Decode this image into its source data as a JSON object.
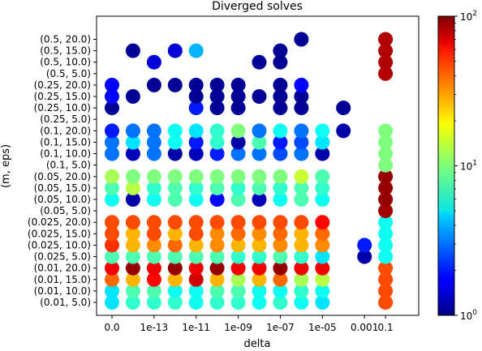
{
  "chart_data": {
    "type": "scatter",
    "title": "Diverged solves",
    "xlabel": "delta",
    "ylabel": "(m, eps)",
    "x_ticks": [
      "0.0",
      "1e-13",
      "1e-11",
      "1e-09",
      "1e-07",
      "1e-05",
      "0.001",
      "0.1"
    ],
    "y_ticks": [
      "(0.01, 5.0)",
      "(0.01, 10.0)",
      "(0.01, 15.0)",
      "(0.01, 20.0)",
      "(0.025, 5.0)",
      "(0.025, 10.0)",
      "(0.025, 15.0)",
      "(0.025, 20.0)",
      "(0.05, 5.0)",
      "(0.05, 10.0)",
      "(0.05, 15.0)",
      "(0.05, 20.0)",
      "(0.1, 5.0)",
      "(0.1, 10.0)",
      "(0.1, 15.0)",
      "(0.1, 20.0)",
      "(0.25, 5.0)",
      "(0.25, 10.0)",
      "(0.25, 15.0)",
      "(0.25, 20.0)",
      "(0.5, 5.0)",
      "(0.5, 10.0)",
      "(0.5, 15.0)",
      "(0.5, 20.0)"
    ],
    "x_values": [
      0.0,
      1e-14,
      1e-13,
      1e-12,
      1e-11,
      1e-10,
      1e-09,
      1e-08,
      1e-07,
      1e-06,
      1e-05,
      0.0001,
      0.001,
      0.1
    ],
    "colorbar": {
      "scale": "log",
      "min": 1,
      "max": 100,
      "colormap": "jet",
      "tick_labels": [
        "10^0",
        "10^1",
        "10^2"
      ]
    },
    "points": [
      [
        0,
        0,
        5
      ],
      [
        1,
        0,
        7
      ],
      [
        2,
        0,
        7
      ],
      [
        3,
        0,
        7
      ],
      [
        4,
        0,
        6
      ],
      [
        5,
        0,
        7
      ],
      [
        6,
        0,
        7
      ],
      [
        7,
        0,
        6
      ],
      [
        8,
        0,
        7
      ],
      [
        9,
        0,
        6
      ],
      [
        10,
        0,
        5
      ],
      [
        13,
        0,
        40
      ],
      [
        0,
        1,
        5
      ],
      [
        1,
        1,
        8
      ],
      [
        2,
        1,
        8
      ],
      [
        3,
        1,
        6
      ],
      [
        4,
        1,
        6
      ],
      [
        5,
        1,
        8
      ],
      [
        6,
        1,
        8
      ],
      [
        7,
        1,
        6
      ],
      [
        8,
        1,
        6
      ],
      [
        9,
        1,
        7
      ],
      [
        10,
        1,
        6
      ],
      [
        13,
        1,
        40
      ],
      [
        0,
        2,
        35
      ],
      [
        1,
        2,
        25
      ],
      [
        2,
        2,
        55
      ],
      [
        3,
        2,
        25
      ],
      [
        4,
        2,
        70
      ],
      [
        5,
        2,
        25
      ],
      [
        6,
        2,
        12
      ],
      [
        7,
        2,
        25
      ],
      [
        8,
        2,
        35
      ],
      [
        9,
        2,
        12
      ],
      [
        10,
        2,
        13
      ],
      [
        13,
        2,
        40
      ],
      [
        0,
        3,
        60
      ],
      [
        1,
        3,
        90
      ],
      [
        2,
        3,
        60
      ],
      [
        3,
        3,
        90
      ],
      [
        4,
        3,
        60
      ],
      [
        5,
        3,
        90
      ],
      [
        6,
        3,
        60
      ],
      [
        7,
        3,
        60
      ],
      [
        8,
        3,
        90
      ],
      [
        9,
        3,
        60
      ],
      [
        10,
        3,
        60
      ],
      [
        13,
        3,
        40
      ],
      [
        0,
        4,
        8
      ],
      [
        1,
        4,
        8
      ],
      [
        2,
        4,
        8
      ],
      [
        3,
        4,
        8
      ],
      [
        4,
        4,
        8
      ],
      [
        5,
        4,
        8
      ],
      [
        6,
        4,
        7
      ],
      [
        7,
        4,
        7
      ],
      [
        8,
        4,
        8
      ],
      [
        9,
        4,
        7
      ],
      [
        10,
        4,
        5
      ],
      [
        12,
        4,
        1.2
      ],
      [
        13,
        4,
        6
      ],
      [
        0,
        5,
        45
      ],
      [
        1,
        5,
        25
      ],
      [
        2,
        5,
        30
      ],
      [
        3,
        5,
        35
      ],
      [
        4,
        5,
        25
      ],
      [
        5,
        5,
        30
      ],
      [
        6,
        5,
        25
      ],
      [
        7,
        5,
        25
      ],
      [
        8,
        5,
        30
      ],
      [
        9,
        5,
        25
      ],
      [
        10,
        5,
        30
      ],
      [
        12,
        5,
        2
      ],
      [
        13,
        5,
        6
      ],
      [
        0,
        6,
        40
      ],
      [
        1,
        6,
        25
      ],
      [
        2,
        6,
        40
      ],
      [
        3,
        6,
        25
      ],
      [
        4,
        6,
        40
      ],
      [
        5,
        6,
        30
      ],
      [
        6,
        6,
        35
      ],
      [
        7,
        6,
        30
      ],
      [
        8,
        6,
        35
      ],
      [
        9,
        6,
        25
      ],
      [
        10,
        6,
        35
      ],
      [
        13,
        6,
        6
      ],
      [
        0,
        7,
        40
      ],
      [
        1,
        7,
        40
      ],
      [
        2,
        7,
        40
      ],
      [
        3,
        7,
        40
      ],
      [
        4,
        7,
        40
      ],
      [
        5,
        7,
        40
      ],
      [
        6,
        7,
        40
      ],
      [
        7,
        7,
        40
      ],
      [
        8,
        7,
        40
      ],
      [
        9,
        7,
        40
      ],
      [
        10,
        7,
        55
      ],
      [
        13,
        7,
        6
      ],
      [
        13,
        8,
        85
      ],
      [
        0,
        9,
        6
      ],
      [
        1,
        9,
        1.2
      ],
      [
        2,
        9,
        6
      ],
      [
        3,
        9,
        8
      ],
      [
        4,
        9,
        6
      ],
      [
        5,
        9,
        1.8
      ],
      [
        6,
        9,
        8
      ],
      [
        7,
        9,
        1.3
      ],
      [
        8,
        9,
        6
      ],
      [
        9,
        9,
        8
      ],
      [
        10,
        9,
        6
      ],
      [
        13,
        9,
        90
      ],
      [
        0,
        10,
        8
      ],
      [
        1,
        10,
        13
      ],
      [
        2,
        10,
        7
      ],
      [
        3,
        10,
        8
      ],
      [
        4,
        10,
        7
      ],
      [
        5,
        10,
        8
      ],
      [
        6,
        10,
        7
      ],
      [
        7,
        10,
        8
      ],
      [
        8,
        10,
        7
      ],
      [
        9,
        10,
        8
      ],
      [
        10,
        10,
        7
      ],
      [
        13,
        10,
        90
      ],
      [
        0,
        11,
        12
      ],
      [
        1,
        11,
        10
      ],
      [
        2,
        11,
        10
      ],
      [
        3,
        11,
        10
      ],
      [
        4,
        11,
        10
      ],
      [
        5,
        11,
        10
      ],
      [
        6,
        11,
        10
      ],
      [
        7,
        11,
        10
      ],
      [
        8,
        11,
        10
      ],
      [
        9,
        11,
        14
      ],
      [
        10,
        11,
        8
      ],
      [
        13,
        11,
        90
      ],
      [
        13,
        12,
        10
      ],
      [
        0,
        13,
        3
      ],
      [
        1,
        13,
        1.3
      ],
      [
        2,
        13,
        3
      ],
      [
        3,
        13,
        1.2
      ],
      [
        4,
        13,
        1.3
      ],
      [
        5,
        13,
        2
      ],
      [
        6,
        13,
        3
      ],
      [
        7,
        13,
        3
      ],
      [
        8,
        13,
        2.5
      ],
      [
        9,
        13,
        3
      ],
      [
        10,
        13,
        1.2
      ],
      [
        13,
        13,
        10
      ],
      [
        0,
        14,
        3
      ],
      [
        1,
        14,
        5
      ],
      [
        2,
        14,
        3
      ],
      [
        3,
        14,
        6
      ],
      [
        4,
        14,
        2
      ],
      [
        5,
        14,
        7
      ],
      [
        6,
        14,
        1.2
      ],
      [
        7,
        14,
        8
      ],
      [
        8,
        14,
        2
      ],
      [
        9,
        14,
        2.5
      ],
      [
        10,
        14,
        5
      ],
      [
        13,
        14,
        10
      ],
      [
        0,
        15,
        2
      ],
      [
        1,
        15,
        3
      ],
      [
        2,
        15,
        3
      ],
      [
        3,
        15,
        6
      ],
      [
        4,
        15,
        5
      ],
      [
        5,
        15,
        7
      ],
      [
        6,
        15,
        10
      ],
      [
        7,
        15,
        3
      ],
      [
        8,
        15,
        6
      ],
      [
        9,
        15,
        3
      ],
      [
        10,
        15,
        6
      ],
      [
        11,
        15,
        1.2
      ],
      [
        13,
        15,
        10
      ],
      [
        0,
        17,
        1.1
      ],
      [
        4,
        17,
        2
      ],
      [
        5,
        17,
        1.1
      ],
      [
        6,
        17,
        1.1
      ],
      [
        8,
        17,
        1.1
      ],
      [
        9,
        17,
        1.1
      ],
      [
        11,
        17,
        1.1
      ],
      [
        0,
        18,
        1.8
      ],
      [
        1,
        18,
        1.1
      ],
      [
        4,
        18,
        1.1
      ],
      [
        5,
        18,
        1.1
      ],
      [
        6,
        18,
        1.1
      ],
      [
        7,
        18,
        1.1
      ],
      [
        8,
        18,
        1.1
      ],
      [
        9,
        18,
        1.1
      ],
      [
        0,
        19,
        1.8
      ],
      [
        2,
        19,
        1.1
      ],
      [
        3,
        19,
        1.1
      ],
      [
        4,
        19,
        1.1
      ],
      [
        5,
        19,
        1.1
      ],
      [
        6,
        19,
        1.1
      ],
      [
        8,
        19,
        1.1
      ],
      [
        9,
        19,
        1.8
      ],
      [
        13,
        20,
        80
      ],
      [
        2,
        21,
        1.5
      ],
      [
        7,
        21,
        1.1
      ],
      [
        8,
        21,
        1.1
      ],
      [
        13,
        21,
        80
      ],
      [
        1,
        22,
        1.1
      ],
      [
        3,
        22,
        1.5
      ],
      [
        4,
        22,
        4
      ],
      [
        8,
        22,
        1.1
      ],
      [
        13,
        22,
        80
      ],
      [
        9,
        23,
        1.1
      ],
      [
        13,
        23,
        80
      ]
    ]
  }
}
